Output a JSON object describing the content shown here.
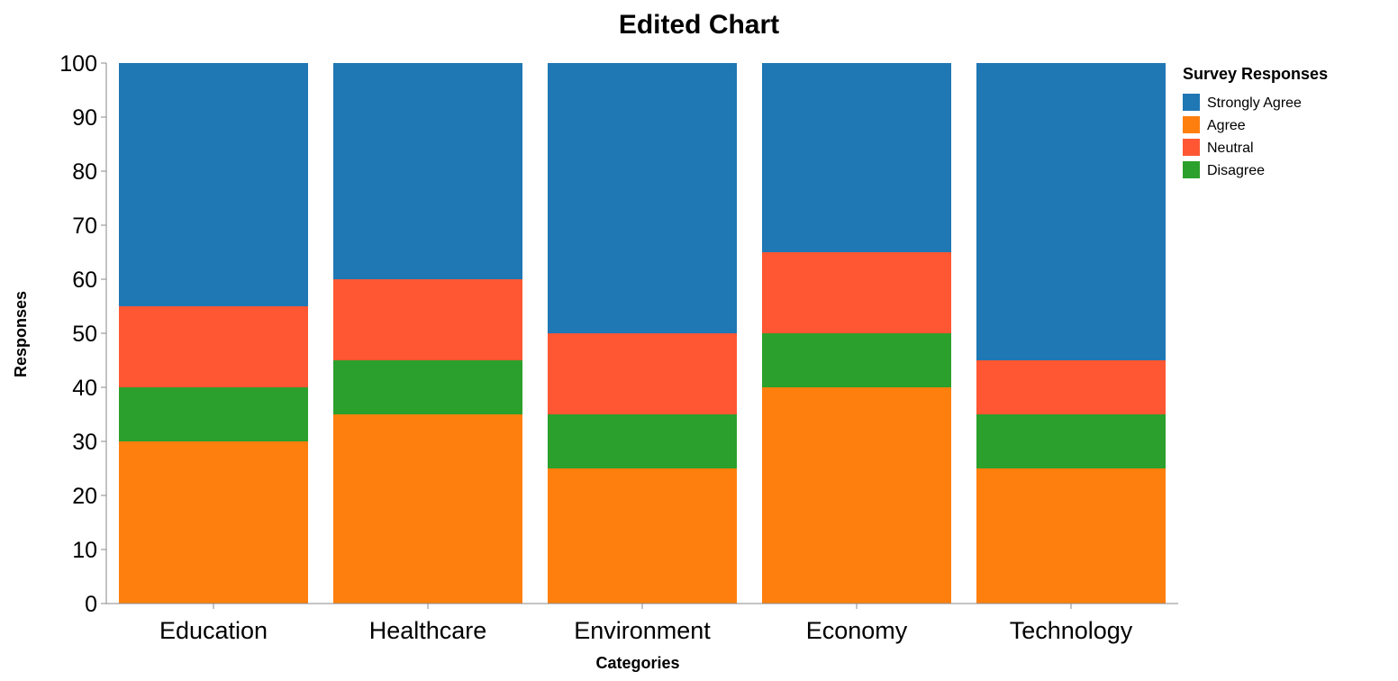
{
  "chart_data": {
    "type": "bar",
    "stacked": true,
    "title": "Edited Chart",
    "xlabel": "Categories",
    "ylabel": "Responses",
    "ylim": [
      0,
      100
    ],
    "yticks": [
      0,
      10,
      20,
      30,
      40,
      50,
      60,
      70,
      80,
      90,
      100
    ],
    "grid": false,
    "categories": [
      "Education",
      "Healthcare",
      "Environment",
      "Economy",
      "Technology"
    ],
    "legend": {
      "title": "Survey Responses",
      "position": "right",
      "entries": [
        "Strongly Agree",
        "Agree",
        "Neutral",
        "Disagree"
      ]
    },
    "stack_order": [
      "Agree",
      "Disagree",
      "Neutral",
      "Strongly Agree"
    ],
    "series": [
      {
        "name": "Strongly Agree",
        "color": "#1f77b4",
        "values": [
          45,
          40,
          50,
          35,
          55
        ]
      },
      {
        "name": "Agree",
        "color": "#ff7f0e",
        "values": [
          30,
          35,
          25,
          40,
          25
        ]
      },
      {
        "name": "Neutral",
        "color": "#ff5733",
        "values": [
          15,
          15,
          15,
          15,
          10
        ]
      },
      {
        "name": "Disagree",
        "color": "#2ca02c",
        "values": [
          10,
          10,
          10,
          10,
          10
        ]
      }
    ]
  }
}
